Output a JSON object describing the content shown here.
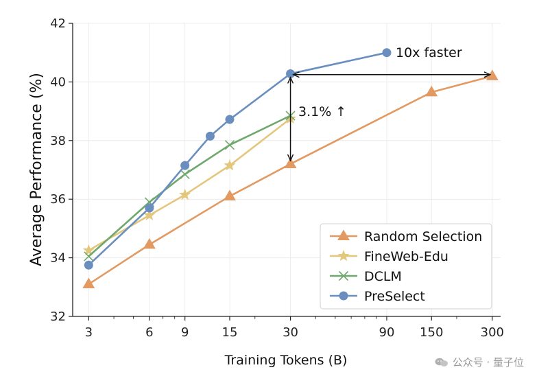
{
  "chart_data": {
    "type": "line",
    "xscale": "log",
    "x_ticks": [
      3,
      6,
      9,
      15,
      30,
      90,
      150,
      300
    ],
    "x_tick_labels": [
      "3",
      "6",
      "9",
      "15",
      "30",
      "90",
      "150",
      "300"
    ],
    "ylim": [
      32,
      42
    ],
    "y_ticks": [
      32,
      34,
      36,
      38,
      40,
      42
    ],
    "y_tick_labels": [
      "32",
      "34",
      "36",
      "38",
      "40",
      "42"
    ],
    "xlabel": "Training Tokens (B)",
    "ylabel": "Average Performance (%)",
    "grid": true,
    "legend_position": "bottom-right",
    "series": [
      {
        "name": "Random Selection",
        "color": "#E29A62",
        "marker": "triangle",
        "x": [
          3,
          6,
          15,
          30,
          150,
          300
        ],
        "y": [
          33.1,
          34.45,
          36.1,
          37.2,
          39.65,
          40.2
        ]
      },
      {
        "name": "FineWeb-Edu",
        "color": "#E3C77D",
        "marker": "star",
        "x": [
          3,
          6,
          9,
          15,
          30
        ],
        "y": [
          34.25,
          35.45,
          36.15,
          37.15,
          38.75
        ]
      },
      {
        "name": "DCLM",
        "color": "#6FA86C",
        "marker": "x",
        "x": [
          3,
          6,
          9,
          15,
          30
        ],
        "y": [
          34.05,
          35.9,
          36.85,
          37.85,
          38.85
        ]
      },
      {
        "name": "PreSelect",
        "color": "#6A8FBF",
        "marker": "circle",
        "x": [
          3,
          6,
          9,
          12,
          15,
          30,
          90
        ],
        "y": [
          33.75,
          35.7,
          37.15,
          38.15,
          38.72,
          40.28,
          41.0
        ]
      }
    ],
    "annotations": {
      "speedup_label": "10x faster",
      "gain_label": "3.1% ↑",
      "speedup_arrow": {
        "x_from": 30,
        "x_to": 300,
        "y": 40.25
      },
      "gain_arrow": {
        "x": 30,
        "y_from": 40.25,
        "y_to": 37.2
      }
    }
  },
  "watermark": {
    "text": "公众号 · 量子位",
    "icon": "wechat-icon"
  }
}
